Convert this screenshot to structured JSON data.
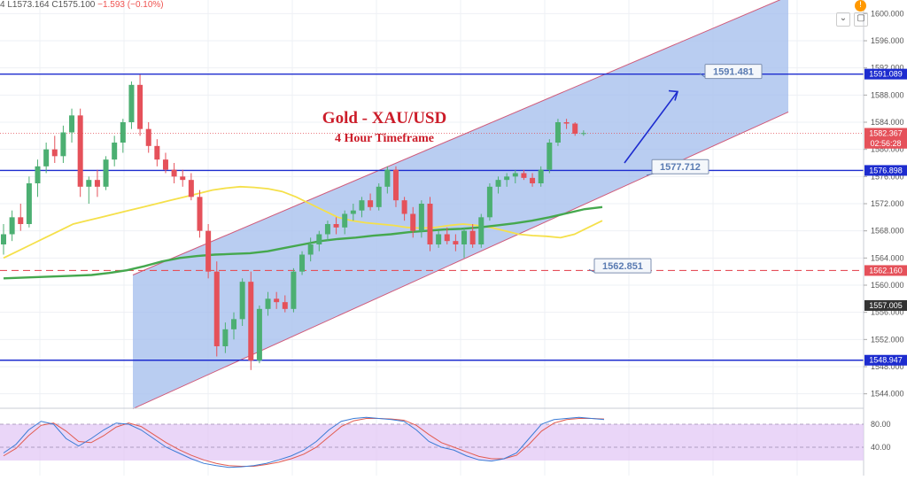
{
  "header": {
    "ohlc_prefix": "4",
    "low": "L1573.164",
    "close": "C1575.100",
    "change": "−1.593 (−0.10%)"
  },
  "controls": {
    "collapse_icon": "chevron-down-icon",
    "settings_icon": "square-icon",
    "alert_badge": "!"
  },
  "annotation": {
    "title": "Gold - XAU/USD",
    "subtitle": "4 Hour Timeframe"
  },
  "colors": {
    "bull": "#4caf72",
    "bear": "#e5515a",
    "channel_fill": "#a7c1ee",
    "channel_edge": "#d05a7a",
    "level_line": "#1d2ccf",
    "ma_fast": "#f5e04a",
    "ma_slow": "#45a84e",
    "ma_mid": "#3b8e99",
    "stoch_bg": "#e3c8f5",
    "stoch_k": "#3a7bd5",
    "stoch_d": "#e25b4f",
    "arrow": "#1d2ccf"
  },
  "chart_data": {
    "type": "candlestick",
    "price_axis": {
      "min": 1542,
      "max": 1602,
      "ticks": [
        1600.0,
        1596.0,
        1592.0,
        1588.0,
        1584.0,
        1580.0,
        1576.0,
        1572.0,
        1568.0,
        1564.0,
        1560.0,
        1556.0,
        1552.0,
        1548.0,
        1544.0
      ],
      "tick_labels": [
        "1600.000",
        "1596.000",
        "1592.000",
        "1588.000",
        "1584.000",
        "1580.000",
        "1576.000",
        "1572.000",
        "1568.000",
        "1564.000",
        "1560.000",
        "1556.000",
        "1552.000",
        "1548.000",
        "1544.000"
      ]
    },
    "price_tags": [
      {
        "label": "1591.089",
        "value": 1591.089,
        "color": "#1d2ccf"
      },
      {
        "label": "1582.367",
        "value": 1582.367,
        "color": "#e5515a"
      },
      {
        "label": "02:56:28",
        "value": 1580.9,
        "color": "#e5515a"
      },
      {
        "label": "1576.898",
        "value": 1576.898,
        "color": "#1d2ccf"
      },
      {
        "label": "1562.160",
        "value": 1562.16,
        "color": "#e5515a"
      },
      {
        "label": "1557.005",
        "value": 1557.005,
        "color": "#333333"
      },
      {
        "label": "1548.947",
        "value": 1548.947,
        "color": "#1d2ccf"
      }
    ],
    "levels": [
      {
        "value": 1591.089,
        "style": "solid"
      },
      {
        "value": 1576.898,
        "style": "solid"
      },
      {
        "value": 1562.16,
        "style": "dashed"
      },
      {
        "value": 1548.947,
        "style": "solid"
      }
    ],
    "callouts": [
      {
        "label": "1591.481",
        "value": 1591.481
      },
      {
        "label": "1577.712",
        "value": 1577.712
      },
      {
        "label": "1562.851",
        "value": 1562.851
      }
    ],
    "candles": [
      {
        "o": 1566.0,
        "h": 1569.0,
        "l": 1564.5,
        "c": 1567.5
      },
      {
        "o": 1567.5,
        "h": 1571.0,
        "l": 1566.5,
        "c": 1570.0
      },
      {
        "o": 1570.0,
        "h": 1572.0,
        "l": 1568.0,
        "c": 1569.0
      },
      {
        "o": 1569.0,
        "h": 1576.0,
        "l": 1568.5,
        "c": 1575.0
      },
      {
        "o": 1575.0,
        "h": 1578.5,
        "l": 1573.0,
        "c": 1577.5
      },
      {
        "o": 1577.5,
        "h": 1581.0,
        "l": 1576.5,
        "c": 1580.0
      },
      {
        "o": 1580.0,
        "h": 1582.0,
        "l": 1578.0,
        "c": 1579.0
      },
      {
        "o": 1579.0,
        "h": 1583.5,
        "l": 1578.0,
        "c": 1582.5
      },
      {
        "o": 1582.5,
        "h": 1586.0,
        "l": 1581.0,
        "c": 1585.0
      },
      {
        "o": 1585.0,
        "h": 1586.0,
        "l": 1573.0,
        "c": 1574.5
      },
      {
        "o": 1574.5,
        "h": 1576.0,
        "l": 1572.0,
        "c": 1575.5
      },
      {
        "o": 1575.5,
        "h": 1577.0,
        "l": 1573.0,
        "c": 1574.5
      },
      {
        "o": 1574.5,
        "h": 1579.0,
        "l": 1574.0,
        "c": 1578.5
      },
      {
        "o": 1578.5,
        "h": 1582.0,
        "l": 1577.5,
        "c": 1581.0
      },
      {
        "o": 1581.0,
        "h": 1584.5,
        "l": 1579.5,
        "c": 1584.0
      },
      {
        "o": 1584.0,
        "h": 1590.0,
        "l": 1583.0,
        "c": 1589.5
      },
      {
        "o": 1589.5,
        "h": 1591.0,
        "l": 1582.0,
        "c": 1583.0
      },
      {
        "o": 1583.0,
        "h": 1584.0,
        "l": 1579.5,
        "c": 1580.5
      },
      {
        "o": 1580.5,
        "h": 1581.5,
        "l": 1577.5,
        "c": 1578.5
      },
      {
        "o": 1578.5,
        "h": 1579.5,
        "l": 1576.5,
        "c": 1577.0
      },
      {
        "o": 1577.0,
        "h": 1578.0,
        "l": 1575.0,
        "c": 1576.0
      },
      {
        "o": 1576.0,
        "h": 1577.0,
        "l": 1574.5,
        "c": 1575.5
      },
      {
        "o": 1575.5,
        "h": 1576.5,
        "l": 1572.5,
        "c": 1573.0
      },
      {
        "o": 1573.0,
        "h": 1574.0,
        "l": 1567.0,
        "c": 1568.0
      },
      {
        "o": 1568.0,
        "h": 1569.0,
        "l": 1561.0,
        "c": 1562.0
      },
      {
        "o": 1562.0,
        "h": 1563.5,
        "l": 1549.5,
        "c": 1551.0
      },
      {
        "o": 1551.0,
        "h": 1554.5,
        "l": 1550.0,
        "c": 1553.5
      },
      {
        "o": 1553.5,
        "h": 1556.0,
        "l": 1552.0,
        "c": 1555.0
      },
      {
        "o": 1555.0,
        "h": 1561.0,
        "l": 1554.0,
        "c": 1560.5
      },
      {
        "o": 1560.5,
        "h": 1562.0,
        "l": 1547.5,
        "c": 1548.9
      },
      {
        "o": 1548.9,
        "h": 1557.0,
        "l": 1548.5,
        "c": 1556.5
      },
      {
        "o": 1556.5,
        "h": 1559.0,
        "l": 1555.5,
        "c": 1558.0
      },
      {
        "o": 1558.0,
        "h": 1559.0,
        "l": 1556.5,
        "c": 1557.5
      },
      {
        "o": 1557.5,
        "h": 1558.5,
        "l": 1556.0,
        "c": 1556.5
      },
      {
        "o": 1556.5,
        "h": 1562.5,
        "l": 1556.0,
        "c": 1562.0
      },
      {
        "o": 1562.0,
        "h": 1565.0,
        "l": 1561.5,
        "c": 1564.5
      },
      {
        "o": 1564.5,
        "h": 1567.0,
        "l": 1563.5,
        "c": 1566.0
      },
      {
        "o": 1566.0,
        "h": 1568.0,
        "l": 1565.0,
        "c": 1567.5
      },
      {
        "o": 1567.5,
        "h": 1569.5,
        "l": 1566.5,
        "c": 1569.0
      },
      {
        "o": 1569.0,
        "h": 1570.0,
        "l": 1567.5,
        "c": 1568.5
      },
      {
        "o": 1568.5,
        "h": 1571.0,
        "l": 1567.5,
        "c": 1570.5
      },
      {
        "o": 1570.5,
        "h": 1572.0,
        "l": 1569.5,
        "c": 1571.0
      },
      {
        "o": 1571.0,
        "h": 1573.0,
        "l": 1570.0,
        "c": 1572.5
      },
      {
        "o": 1572.5,
        "h": 1573.5,
        "l": 1571.0,
        "c": 1571.5
      },
      {
        "o": 1571.5,
        "h": 1575.0,
        "l": 1571.0,
        "c": 1574.5
      },
      {
        "o": 1574.5,
        "h": 1577.5,
        "l": 1573.5,
        "c": 1577.0
      },
      {
        "o": 1577.0,
        "h": 1577.5,
        "l": 1571.5,
        "c": 1572.5
      },
      {
        "o": 1572.5,
        "h": 1573.0,
        "l": 1569.5,
        "c": 1570.5
      },
      {
        "o": 1570.5,
        "h": 1571.5,
        "l": 1567.0,
        "c": 1568.0
      },
      {
        "o": 1568.0,
        "h": 1572.5,
        "l": 1567.0,
        "c": 1572.0
      },
      {
        "o": 1572.0,
        "h": 1573.0,
        "l": 1565.0,
        "c": 1566.0
      },
      {
        "o": 1566.0,
        "h": 1568.0,
        "l": 1565.5,
        "c": 1567.5
      },
      {
        "o": 1567.5,
        "h": 1568.5,
        "l": 1566.0,
        "c": 1566.5
      },
      {
        "o": 1566.5,
        "h": 1567.5,
        "l": 1565.0,
        "c": 1566.0
      },
      {
        "o": 1566.0,
        "h": 1568.5,
        "l": 1564.0,
        "c": 1568.0
      },
      {
        "o": 1568.0,
        "h": 1569.0,
        "l": 1565.5,
        "c": 1566.0
      },
      {
        "o": 1566.0,
        "h": 1570.5,
        "l": 1565.5,
        "c": 1570.0
      },
      {
        "o": 1570.0,
        "h": 1575.0,
        "l": 1569.5,
        "c": 1574.5
      },
      {
        "o": 1574.5,
        "h": 1576.0,
        "l": 1573.5,
        "c": 1575.5
      },
      {
        "o": 1575.5,
        "h": 1576.5,
        "l": 1574.5,
        "c": 1576.0
      },
      {
        "o": 1576.0,
        "h": 1577.0,
        "l": 1575.0,
        "c": 1576.5
      },
      {
        "o": 1576.5,
        "h": 1577.0,
        "l": 1575.5,
        "c": 1575.8
      },
      {
        "o": 1575.8,
        "h": 1576.5,
        "l": 1574.5,
        "c": 1575.0
      },
      {
        "o": 1575.0,
        "h": 1577.5,
        "l": 1574.5,
        "c": 1577.0
      },
      {
        "o": 1577.0,
        "h": 1581.5,
        "l": 1576.5,
        "c": 1581.0
      },
      {
        "o": 1581.0,
        "h": 1584.5,
        "l": 1580.5,
        "c": 1584.0
      },
      {
        "o": 1584.0,
        "h": 1584.5,
        "l": 1583.0,
        "c": 1583.8
      },
      {
        "o": 1583.8,
        "h": 1584.0,
        "l": 1582.0,
        "c": 1582.3
      },
      {
        "o": 1582.3,
        "h": 1582.8,
        "l": 1582.0,
        "c": 1582.4
      }
    ],
    "moving_averages": [
      {
        "color": "#f5e04a",
        "values": [
          1564.0,
          1565.0,
          1566.0,
          1567.0,
          1568.0,
          1569.0,
          1569.5,
          1570.0,
          1570.5,
          1571.0,
          1571.5,
          1572.0,
          1572.5,
          1573.0,
          1573.5,
          1574.0,
          1574.3,
          1574.5,
          1574.4,
          1574.2,
          1573.8,
          1573.0,
          1572.0,
          1571.0,
          1570.0,
          1569.5,
          1569.2,
          1569.0,
          1568.8,
          1568.5,
          1568.4,
          1568.5,
          1568.8,
          1569.0,
          1568.8,
          1568.5,
          1568.0,
          1567.5,
          1567.3,
          1567.2,
          1567.0,
          1567.5,
          1568.5,
          1569.5
        ]
      },
      {
        "color": "#45a84e",
        "values": [
          1561.0,
          1561.1,
          1561.2,
          1561.3,
          1561.4,
          1561.5,
          1561.8,
          1562.2,
          1562.8,
          1563.5,
          1564.0,
          1564.3,
          1564.5,
          1564.6,
          1564.7,
          1565.0,
          1565.5,
          1566.0,
          1566.5,
          1566.8,
          1567.0,
          1567.3,
          1567.5,
          1567.8,
          1568.0,
          1568.2,
          1568.3,
          1568.5,
          1568.8,
          1569.1,
          1569.5,
          1570.0,
          1570.6,
          1571.2,
          1571.5
        ]
      },
      {
        "color": "#3b8e99",
        "values": []
      }
    ],
    "stochastic": {
      "levels": [
        80.0,
        40.0
      ],
      "level_labels": [
        "80.00",
        "40.00"
      ],
      "k": [
        30,
        45,
        70,
        85,
        80,
        55,
        42,
        55,
        70,
        82,
        80,
        70,
        55,
        40,
        30,
        20,
        12,
        8,
        5,
        6,
        8,
        12,
        18,
        25,
        35,
        50,
        70,
        85,
        90,
        92,
        90,
        88,
        85,
        70,
        50,
        40,
        35,
        25,
        18,
        16,
        20,
        30,
        55,
        80,
        88,
        90,
        92,
        90,
        88
      ],
      "d": [
        25,
        38,
        60,
        78,
        82,
        68,
        50,
        48,
        60,
        75,
        82,
        76,
        62,
        48,
        36,
        26,
        18,
        12,
        8,
        7,
        7,
        10,
        14,
        20,
        28,
        40,
        58,
        76,
        86,
        90,
        90,
        89,
        87,
        78,
        62,
        48,
        40,
        32,
        24,
        20,
        20,
        26,
        45,
        68,
        82,
        88,
        90,
        90,
        89
      ]
    }
  }
}
